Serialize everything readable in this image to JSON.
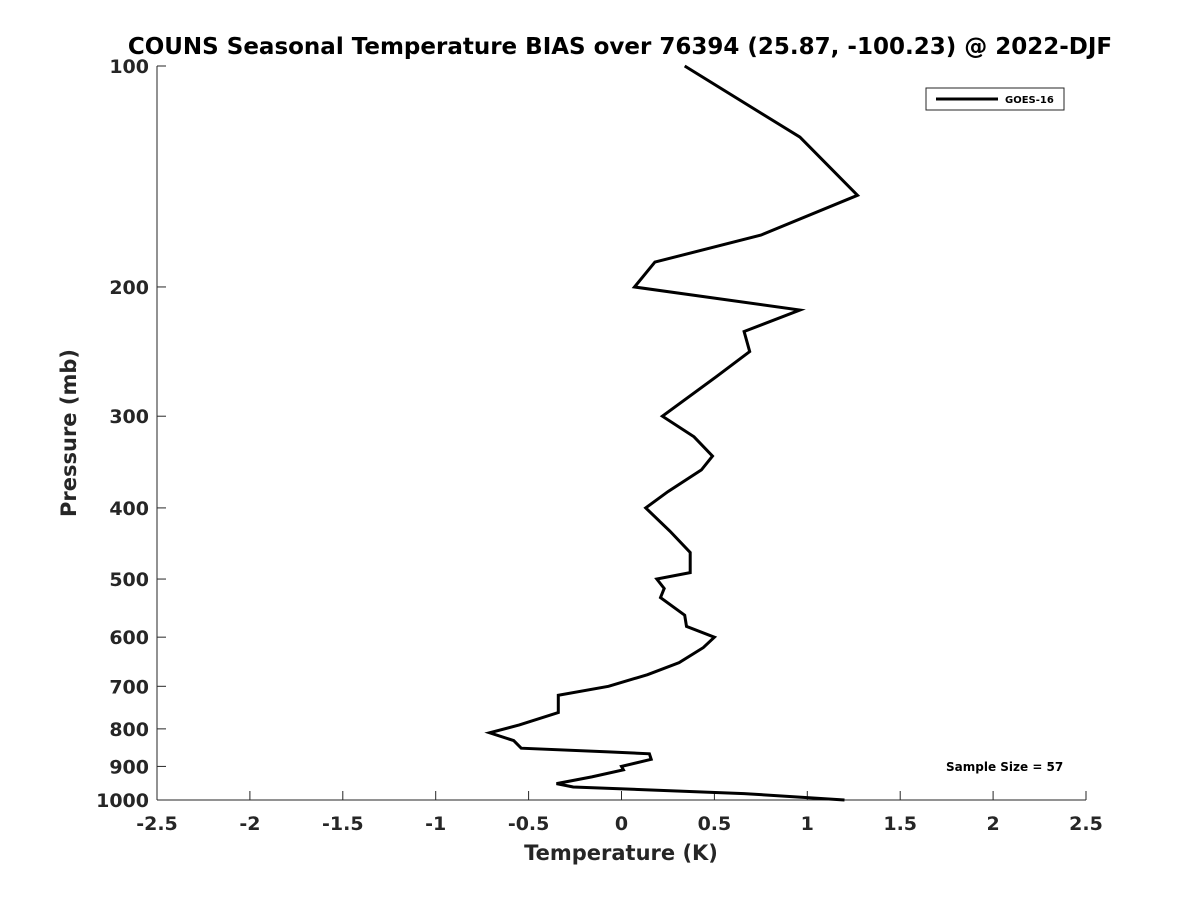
{
  "chart_data": {
    "type": "line",
    "title": "COUNS Seasonal Temperature BIAS over 76394 (25.87, -100.23) @ 2022-DJF",
    "xlabel": "Temperature (K)",
    "ylabel": "Pressure (mb)",
    "xlim": [
      -2.5,
      2.5
    ],
    "ylim": [
      100,
      1000
    ],
    "y_scale": "log",
    "y_reversed": true,
    "x_ticks": [
      -2.5,
      -2,
      -1.5,
      -1,
      -0.5,
      0,
      0.5,
      1,
      1.5,
      2,
      2.5
    ],
    "x_tick_labels": [
      "-2.5",
      "-2",
      "-1.5",
      "-1",
      "-0.5",
      "0",
      "0.5",
      "1",
      "1.5",
      "2",
      "2.5"
    ],
    "y_ticks": [
      100,
      200,
      300,
      400,
      500,
      600,
      700,
      800,
      900,
      1000
    ],
    "y_tick_labels": [
      "100",
      "200",
      "300",
      "400",
      "500",
      "600",
      "700",
      "800",
      "900",
      "1000"
    ],
    "grid": false,
    "legend_position": "top-right",
    "series": [
      {
        "name": "GOES-16",
        "color": "#000000",
        "x": [
          0.34,
          0.96,
          1.27,
          0.75,
          0.18,
          0.07,
          0.96,
          0.66,
          0.69,
          0.51,
          0.22,
          0.39,
          0.49,
          0.43,
          0.25,
          0.13,
          0.26,
          0.37,
          0.37,
          0.19,
          0.23,
          0.21,
          0.34,
          0.35,
          0.5,
          0.44,
          0.31,
          0.14,
          -0.07,
          -0.34,
          -0.34,
          -0.55,
          -0.71,
          -0.58,
          -0.54,
          -0.07,
          0.15,
          0.16,
          0.0,
          0.01,
          -0.16,
          -0.35,
          -0.26,
          0.66,
          1.2
        ],
        "y": [
          100,
          125,
          150,
          170,
          185,
          200,
          215,
          230,
          245,
          265,
          300,
          320,
          340,
          355,
          380,
          400,
          430,
          460,
          490,
          500,
          515,
          530,
          560,
          580,
          600,
          620,
          650,
          675,
          700,
          720,
          760,
          790,
          810,
          830,
          850,
          860,
          865,
          880,
          900,
          910,
          930,
          950,
          960,
          980,
          1000
        ]
      }
    ],
    "annotations": [
      {
        "text": "Sample Size = 57",
        "position": "bottom-right"
      }
    ]
  }
}
